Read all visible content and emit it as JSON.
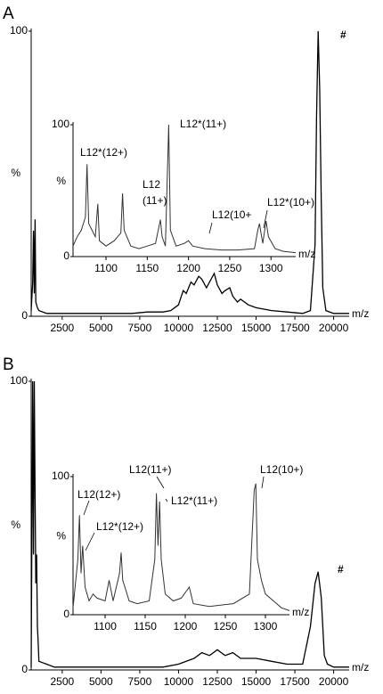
{
  "chart_data": [
    {
      "type": "line",
      "panel_label": "A",
      "ylabel": "%",
      "xlabel": "m/z",
      "color": "#000000",
      "x": [
        500,
        600,
        650,
        700,
        750,
        800,
        900,
        1000,
        1500,
        2000,
        3000,
        4000,
        5000,
        6000,
        7000,
        8000,
        9000,
        9500,
        10000,
        10300,
        10500,
        10800,
        11000,
        11300,
        11500,
        11800,
        12000,
        12300,
        12500,
        12800,
        13000,
        13300,
        13500,
        13800,
        14000,
        14500,
        15000,
        16000,
        17000,
        18000,
        18500,
        18800,
        18900,
        19000,
        19100,
        19200,
        19300,
        19500,
        20000,
        21000
      ],
      "values": [
        2,
        12,
        30,
        8,
        34,
        5,
        3,
        2,
        1,
        1,
        1,
        1,
        1,
        1,
        1,
        1.5,
        1.5,
        2,
        4,
        9,
        8,
        12,
        11,
        14,
        13,
        10,
        12,
        15,
        11,
        8,
        9,
        10,
        7,
        5,
        6,
        4,
        3,
        2,
        1.5,
        1,
        2,
        25,
        70,
        100,
        80,
        40,
        10,
        2,
        1,
        1
      ],
      "xlim": [
        500,
        21000
      ],
      "ylim": [
        0,
        100
      ],
      "xticks": [
        2500,
        5000,
        7500,
        10000,
        12500,
        15000,
        17500,
        20000
      ],
      "yticks": [
        0,
        100
      ],
      "annotations": [
        "#"
      ]
    },
    {
      "type": "line",
      "ylabel": "%",
      "xlabel": "m/z",
      "color": "#333333",
      "x": [
        1060,
        1065,
        1070,
        1075,
        1077,
        1079,
        1083,
        1087,
        1090,
        1092,
        1100,
        1110,
        1118,
        1120,
        1122,
        1130,
        1140,
        1150,
        1160,
        1166,
        1168,
        1172,
        1176,
        1178,
        1185,
        1195,
        1200,
        1205,
        1220,
        1240,
        1260,
        1280,
        1284,
        1286,
        1290,
        1294,
        1297,
        1305,
        1315,
        1330
      ],
      "values": [
        8,
        15,
        20,
        30,
        70,
        25,
        20,
        15,
        40,
        12,
        8,
        12,
        18,
        48,
        20,
        8,
        6,
        8,
        10,
        28,
        15,
        8,
        100,
        20,
        8,
        10,
        12,
        8,
        6,
        5,
        5,
        6,
        20,
        25,
        10,
        27,
        15,
        6,
        4,
        3
      ],
      "xlim": [
        1060,
        1330
      ],
      "ylim": [
        0,
        100
      ],
      "xticks": [
        1100,
        1150,
        1200,
        1250,
        1300
      ],
      "yticks": [
        0,
        100
      ],
      "annotations": [
        "L12*(12+)",
        "L12",
        "(11+)",
        "L12*(11+)",
        "L12(10+",
        "L12*(10+)"
      ]
    },
    {
      "type": "line",
      "panel_label": "B",
      "ylabel": "%",
      "xlabel": "m/z",
      "color": "#000000",
      "x": [
        500,
        600,
        650,
        700,
        750,
        800,
        850,
        900,
        950,
        1000,
        1500,
        2000,
        3000,
        4000,
        5000,
        6000,
        7000,
        8000,
        9000,
        10000,
        11000,
        11500,
        12000,
        12500,
        13000,
        13500,
        14000,
        15000,
        16000,
        17000,
        18000,
        18500,
        18800,
        19000,
        19200,
        19400,
        19600,
        20000,
        21000
      ],
      "values": [
        1,
        100,
        40,
        100,
        60,
        30,
        40,
        15,
        10,
        3,
        2,
        1,
        1,
        1,
        1,
        1,
        1,
        1,
        1,
        2,
        4,
        6,
        5,
        7,
        5,
        6,
        4,
        4,
        3,
        2,
        2,
        15,
        30,
        34,
        25,
        5,
        2,
        1,
        1
      ],
      "xlim": [
        500,
        21000
      ],
      "ylim": [
        0,
        100
      ],
      "xticks": [
        2500,
        5000,
        7500,
        10000,
        12500,
        15000,
        17500,
        20000
      ],
      "yticks": [
        0,
        100
      ],
      "annotations": [
        "#"
      ]
    },
    {
      "type": "line",
      "ylabel": "%",
      "xlabel": "m/z",
      "color": "#333333",
      "x": [
        1060,
        1066,
        1068,
        1070,
        1072,
        1075,
        1080,
        1085,
        1090,
        1100,
        1105,
        1110,
        1118,
        1120,
        1122,
        1130,
        1140,
        1155,
        1162,
        1164,
        1166,
        1168,
        1170,
        1175,
        1185,
        1195,
        1205,
        1210,
        1230,
        1260,
        1280,
        1286,
        1288,
        1290,
        1295,
        1300,
        1310,
        1320,
        1330
      ],
      "values": [
        5,
        40,
        72,
        30,
        50,
        20,
        10,
        15,
        12,
        10,
        25,
        10,
        30,
        45,
        25,
        10,
        8,
        10,
        40,
        88,
        50,
        82,
        40,
        15,
        10,
        12,
        20,
        8,
        6,
        8,
        15,
        90,
        95,
        40,
        25,
        15,
        10,
        5,
        3
      ],
      "xlim": [
        1060,
        1330
      ],
      "ylim": [
        0,
        100
      ],
      "xticks": [
        1100,
        1150,
        1200,
        1250,
        1300
      ],
      "yticks": [
        0,
        100
      ],
      "annotations": [
        "L12(12+)",
        "L12*(12+)",
        "L12(11+)",
        "L12*(11+)",
        "L12(10+)"
      ]
    }
  ]
}
